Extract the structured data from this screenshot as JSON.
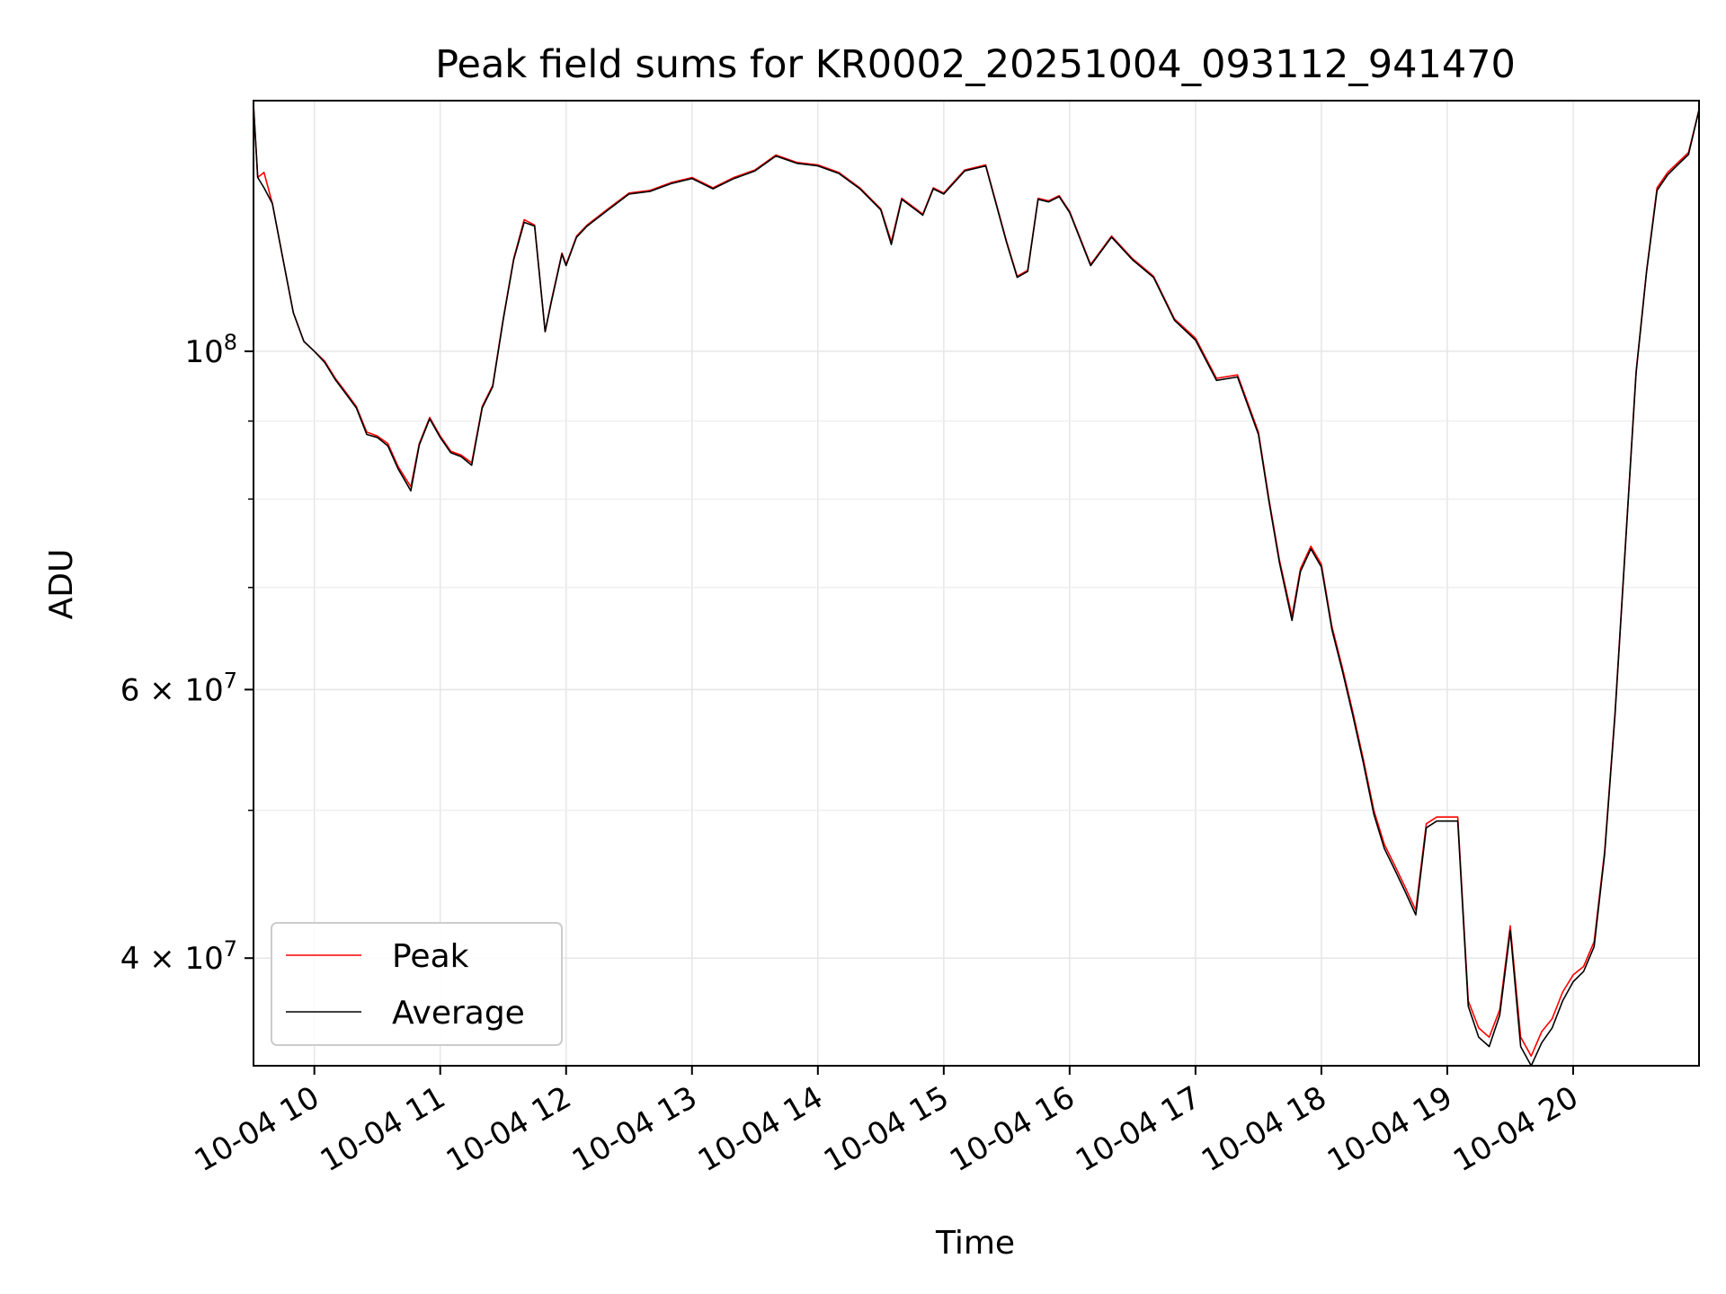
{
  "chart_data": {
    "type": "line",
    "title": "Peak field sums for KR0002_20251004_093112_941470",
    "xlabel": "Time",
    "ylabel": "ADU",
    "xlim": [
      "2025-10-04 09:31",
      "2025-10-04 21:00"
    ],
    "ylim": [
      34000000,
      146000000
    ],
    "yscale": "log",
    "grid": true,
    "legend_position": "lower-left",
    "x_ticks": [
      "10-04 10",
      "10-04 11",
      "10-04 12",
      "10-04 13",
      "10-04 14",
      "10-04 15",
      "10-04 16",
      "10-04 17",
      "10-04 18",
      "10-04 19",
      "10-04 20"
    ],
    "y_ticks": [
      {
        "value": 100000000,
        "label": "10^8",
        "base": "10",
        "exp": "8"
      },
      {
        "value": 60000000,
        "label": "6×10^7",
        "base": "6 × 10",
        "exp": "7"
      },
      {
        "value": 40000000,
        "label": "4×10^7",
        "base": "4 × 10",
        "exp": "7"
      }
    ],
    "y_minor_ticks": [
      90000000,
      80000000,
      70000000,
      50000000
    ],
    "x": [
      "2025-10-04 09:31",
      "2025-10-04 09:33",
      "2025-10-04 09:36",
      "2025-10-04 09:40",
      "2025-10-04 09:45",
      "2025-10-04 09:50",
      "2025-10-04 09:55",
      "2025-10-04 10:00",
      "2025-10-04 10:05",
      "2025-10-04 10:10",
      "2025-10-04 10:15",
      "2025-10-04 10:20",
      "2025-10-04 10:25",
      "2025-10-04 10:30",
      "2025-10-04 10:35",
      "2025-10-04 10:40",
      "2025-10-04 10:46",
      "2025-10-04 10:50",
      "2025-10-04 10:55",
      "2025-10-04 11:00",
      "2025-10-04 11:05",
      "2025-10-04 11:10",
      "2025-10-04 11:15",
      "2025-10-04 11:20",
      "2025-10-04 11:25",
      "2025-10-04 11:30",
      "2025-10-04 11:35",
      "2025-10-04 11:40",
      "2025-10-04 11:45",
      "2025-10-04 11:50",
      "2025-10-04 11:53",
      "2025-10-04 11:58",
      "2025-10-04 12:00",
      "2025-10-04 12:05",
      "2025-10-04 12:10",
      "2025-10-04 12:20",
      "2025-10-04 12:30",
      "2025-10-04 12:40",
      "2025-10-04 12:50",
      "2025-10-04 13:00",
      "2025-10-04 13:10",
      "2025-10-04 13:20",
      "2025-10-04 13:30",
      "2025-10-04 13:40",
      "2025-10-04 13:50",
      "2025-10-04 14:00",
      "2025-10-04 14:10",
      "2025-10-04 14:20",
      "2025-10-04 14:30",
      "2025-10-04 14:35",
      "2025-10-04 14:40",
      "2025-10-04 14:45",
      "2025-10-04 14:50",
      "2025-10-04 14:55",
      "2025-10-04 15:00",
      "2025-10-04 15:10",
      "2025-10-04 15:20",
      "2025-10-04 15:30",
      "2025-10-04 15:35",
      "2025-10-04 15:40",
      "2025-10-04 15:45",
      "2025-10-04 15:50",
      "2025-10-04 15:55",
      "2025-10-04 16:00",
      "2025-10-04 16:10",
      "2025-10-04 16:20",
      "2025-10-04 16:30",
      "2025-10-04 16:40",
      "2025-10-04 16:50",
      "2025-10-04 17:00",
      "2025-10-04 17:10",
      "2025-10-04 17:20",
      "2025-10-04 17:30",
      "2025-10-04 17:35",
      "2025-10-04 17:40",
      "2025-10-04 17:46",
      "2025-10-04 17:50",
      "2025-10-04 17:55",
      "2025-10-04 18:00",
      "2025-10-04 18:05",
      "2025-10-04 18:10",
      "2025-10-04 18:15",
      "2025-10-04 18:20",
      "2025-10-04 18:25",
      "2025-10-04 18:30",
      "2025-10-04 18:35",
      "2025-10-04 18:40",
      "2025-10-04 18:45",
      "2025-10-04 18:50",
      "2025-10-04 18:55",
      "2025-10-04 19:00",
      "2025-10-04 19:05",
      "2025-10-04 19:10",
      "2025-10-04 19:15",
      "2025-10-04 19:20",
      "2025-10-04 19:25",
      "2025-10-04 19:30",
      "2025-10-04 19:35",
      "2025-10-04 19:40",
      "2025-10-04 19:45",
      "2025-10-04 19:50",
      "2025-10-04 19:55",
      "2025-10-04 20:00",
      "2025-10-04 20:05",
      "2025-10-04 20:10",
      "2025-10-04 20:15",
      "2025-10-04 20:20",
      "2025-10-04 20:25",
      "2025-10-04 20:30",
      "2025-10-04 20:35",
      "2025-10-04 20:40",
      "2025-10-04 20:45",
      "2025-10-04 20:50",
      "2025-10-04 20:55",
      "2025-10-04 21:00"
    ],
    "series": [
      {
        "name": "Peak",
        "color": "#ff0000",
        "values": [
          145000000,
          130000000,
          131000000,
          125000000,
          115000000,
          106000000,
          101500000,
          100000000,
          98500000,
          96000000,
          94000000,
          92000000,
          88500000,
          88000000,
          87000000,
          84000000,
          81500000,
          87000000,
          90500000,
          88000000,
          86000000,
          85500000,
          84500000,
          92000000,
          95000000,
          105000000,
          115000000,
          122000000,
          121000000,
          103000000,
          108000000,
          116000000,
          114000000,
          119000000,
          121000000,
          124000000,
          127000000,
          127500000,
          129000000,
          130000000,
          128000000,
          130000000,
          131500000,
          134500000,
          133000000,
          132500000,
          131000000,
          128000000,
          124000000,
          118000000,
          126000000,
          124500000,
          123000000,
          128000000,
          127000000,
          131500000,
          132500000,
          118000000,
          112000000,
          113000000,
          126000000,
          125500000,
          126500000,
          123500000,
          114000000,
          119000000,
          115000000,
          112000000,
          105000000,
          102000000,
          96000000,
          96500000,
          88500000,
          80000000,
          73000000,
          67000000,
          72000000,
          74500000,
          72500000,
          66000000,
          62000000,
          58000000,
          54000000,
          50000000,
          47500000,
          46000000,
          44500000,
          43000000,
          49000000,
          49500000,
          49500000,
          49500000,
          37500000,
          36000000,
          35500000,
          37000000,
          42000000,
          35500000,
          34500000,
          35800000,
          36500000,
          38000000,
          39000000,
          39500000,
          41000000,
          47000000,
          58000000,
          75000000,
          97000000,
          113000000,
          128000000,
          131000000,
          133000000,
          135000000,
          144000000
        ]
      },
      {
        "name": "Average",
        "color": "#000000",
        "values": [
          145000000,
          130000000,
          128000000,
          125000000,
          115000000,
          106000000,
          101500000,
          100000000,
          98300000,
          95800000,
          93800000,
          91800000,
          88200000,
          87800000,
          86700000,
          83700000,
          81000000,
          86800000,
          90300000,
          87800000,
          85800000,
          85300000,
          84200000,
          91800000,
          94800000,
          104800000,
          114800000,
          121500000,
          120800000,
          103000000,
          107800000,
          115800000,
          113800000,
          118800000,
          120800000,
          123800000,
          126800000,
          127300000,
          128800000,
          129800000,
          127800000,
          129800000,
          131300000,
          134300000,
          132800000,
          132300000,
          130800000,
          127800000,
          123800000,
          117500000,
          125800000,
          124300000,
          122800000,
          127800000,
          126800000,
          131300000,
          132300000,
          117800000,
          111800000,
          112800000,
          125800000,
          125300000,
          126300000,
          123300000,
          113800000,
          118800000,
          114800000,
          111800000,
          104800000,
          101700000,
          95700000,
          96200000,
          88200000,
          79700000,
          72700000,
          66600000,
          71700000,
          74200000,
          72200000,
          65700000,
          61700000,
          57700000,
          53700000,
          49700000,
          47200000,
          45700000,
          44200000,
          42700000,
          48700000,
          49200000,
          49200000,
          49200000,
          37200000,
          35500000,
          35000000,
          36700000,
          41700000,
          35000000,
          34000000,
          35200000,
          36000000,
          37500000,
          38600000,
          39200000,
          40700000,
          46800000,
          57800000,
          74800000,
          96800000,
          112800000,
          127500000,
          130500000,
          132600000,
          134600000,
          144000000
        ]
      }
    ]
  }
}
